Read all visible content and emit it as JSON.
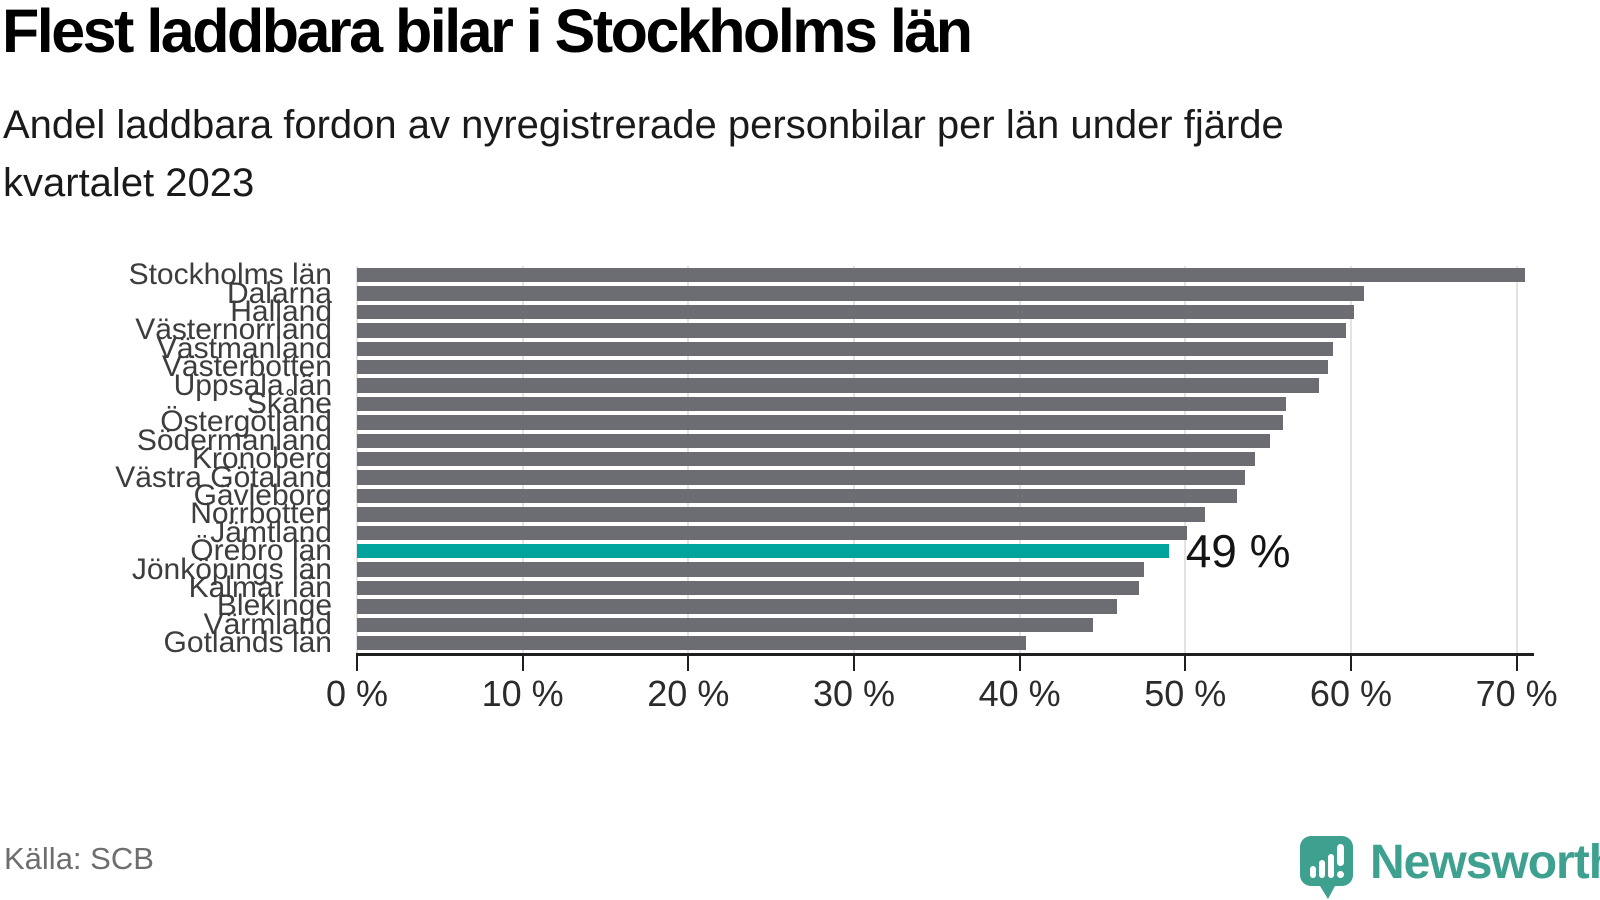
{
  "header": {
    "title": "Flest laddbara bilar i Stockholms län",
    "subtitle_lines": [
      "Andel laddbara fordon av nyregistrerade personbilar per län under fjärde",
      "kvartalet 2023"
    ]
  },
  "chart_data": {
    "type": "bar",
    "orientation": "horizontal",
    "unit": "%",
    "title": "Flest laddbara bilar i Stockholms län",
    "xlabel": "",
    "ylabel": "",
    "xlim": [
      0,
      70
    ],
    "grid": true,
    "legend": false,
    "categories": [
      "Stockholms län",
      "Dalarna",
      "Halland",
      "Västernorrland",
      "Västmanland",
      "Västerbotten",
      "Uppsala län",
      "Skåne",
      "Östergötland",
      "Södermanland",
      "Kronoberg",
      "Västra Götaland",
      "Gävleborg",
      "Norrbotten",
      "Jämtland",
      "Örebro län",
      "Jönköpings län",
      "Kalmar län",
      "Blekinge",
      "Värmland",
      "Gotlands län"
    ],
    "values": [
      70.5,
      60.8,
      60.2,
      59.7,
      58.9,
      58.6,
      58.1,
      56.1,
      55.9,
      55.1,
      54.2,
      53.6,
      53.1,
      51.2,
      50.1,
      49,
      47.5,
      47.2,
      45.9,
      44.4,
      40.4
    ],
    "x_ticks": [
      "0 %",
      "10 %",
      "20 %",
      "30 %",
      "40 %",
      "50 %",
      "60 %",
      "70 %"
    ],
    "highlight": {
      "category": "Örebro län",
      "value": 49,
      "label": "49 %"
    }
  },
  "colors": {
    "bar": "#6C6C73",
    "highlight": "#00A49C",
    "grid": "#E3E3E5",
    "axis": "#1F1F1F",
    "logo": "#3EA08F"
  },
  "footer": {
    "source": "Källa: SCB",
    "brand": "Newsworthy"
  }
}
